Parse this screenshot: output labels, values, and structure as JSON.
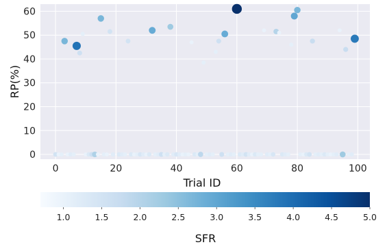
{
  "chart_data": {
    "type": "scatter",
    "xlabel": "Trial ID",
    "ylabel": "RP(%)",
    "xlim": [
      -5,
      104
    ],
    "ylim": [
      -2,
      63
    ],
    "x_ticks": [
      0,
      20,
      40,
      60,
      80,
      100
    ],
    "y_ticks": [
      0,
      10,
      20,
      30,
      40,
      50,
      60
    ],
    "grid": true,
    "colorbar": {
      "label": "SFR",
      "range": [
        0.7,
        5.0
      ],
      "ticks": [
        1.0,
        1.5,
        2.0,
        2.5,
        3.0,
        3.5,
        4.0,
        4.5,
        5.0
      ],
      "tick_labels": [
        "1.0",
        "1.5",
        "2.0",
        "2.5",
        "3.0",
        "3.5",
        "4.0",
        "4.5",
        "5.0"
      ],
      "colormap": "Blues",
      "orientation": "horizontal"
    },
    "colors": {
      "background": "#eaeaf2",
      "grid": "#ffffff"
    },
    "points": [
      {
        "x": 3,
        "y": 47.5,
        "sfr": 2.7
      },
      {
        "x": 7,
        "y": 45.5,
        "sfr": 3.9
      },
      {
        "x": 8,
        "y": 42.5,
        "sfr": 1.6
      },
      {
        "x": 9,
        "y": 50.5,
        "sfr": 1.1
      },
      {
        "x": 15,
        "y": 57,
        "sfr": 2.7
      },
      {
        "x": 18,
        "y": 51.5,
        "sfr": 1.5
      },
      {
        "x": 24,
        "y": 47.5,
        "sfr": 1.5
      },
      {
        "x": 32,
        "y": 52,
        "sfr": 2.9
      },
      {
        "x": 38,
        "y": 53.5,
        "sfr": 2.3
      },
      {
        "x": 45,
        "y": 47,
        "sfr": 1.0
      },
      {
        "x": 49,
        "y": 38.5,
        "sfr": 1.1
      },
      {
        "x": 53,
        "y": 43,
        "sfr": 1.1
      },
      {
        "x": 54,
        "y": 47.5,
        "sfr": 1.6
      },
      {
        "x": 56,
        "y": 50.5,
        "sfr": 2.9
      },
      {
        "x": 60,
        "y": 61,
        "sfr": 5.0
      },
      {
        "x": 69,
        "y": 52,
        "sfr": 1.0
      },
      {
        "x": 73,
        "y": 51.5,
        "sfr": 2.0
      },
      {
        "x": 74,
        "y": 51,
        "sfr": 1.0
      },
      {
        "x": 78,
        "y": 46,
        "sfr": 1.1
      },
      {
        "x": 79,
        "y": 58,
        "sfr": 3.0
      },
      {
        "x": 80,
        "y": 60.5,
        "sfr": 2.7
      },
      {
        "x": 85,
        "y": 47.5,
        "sfr": 1.7
      },
      {
        "x": 94,
        "y": 52,
        "sfr": 1.0
      },
      {
        "x": 96,
        "y": 44,
        "sfr": 1.7
      },
      {
        "x": 99,
        "y": 48.5,
        "sfr": 3.8
      },
      {
        "x": 0,
        "y": 0,
        "sfr": 1.5
      },
      {
        "x": 1,
        "y": 0,
        "sfr": 1.0
      },
      {
        "x": 2,
        "y": 0,
        "sfr": 1.1
      },
      {
        "x": 4,
        "y": 0,
        "sfr": 1.0
      },
      {
        "x": 5,
        "y": 0,
        "sfr": 1.2
      },
      {
        "x": 6,
        "y": 0,
        "sfr": 1.1
      },
      {
        "x": 10,
        "y": 0,
        "sfr": 1.0
      },
      {
        "x": 11,
        "y": 0,
        "sfr": 1.3
      },
      {
        "x": 12,
        "y": 0,
        "sfr": 1.6
      },
      {
        "x": 13,
        "y": 0,
        "sfr": 2.1
      },
      {
        "x": 14,
        "y": 0,
        "sfr": 1.0
      },
      {
        "x": 16,
        "y": 0,
        "sfr": 1.1
      },
      {
        "x": 17,
        "y": 0,
        "sfr": 1.0
      },
      {
        "x": 19,
        "y": 0,
        "sfr": 1.2
      },
      {
        "x": 21,
        "y": 0,
        "sfr": 1.3
      },
      {
        "x": 22,
        "y": 0,
        "sfr": 1.2
      },
      {
        "x": 23,
        "y": 0,
        "sfr": 1.1
      },
      {
        "x": 25,
        "y": 0,
        "sfr": 1.3
      },
      {
        "x": 26,
        "y": 0,
        "sfr": 1.0
      },
      {
        "x": 27,
        "y": 0,
        "sfr": 1.1
      },
      {
        "x": 28,
        "y": 0,
        "sfr": 1.4
      },
      {
        "x": 29,
        "y": 0,
        "sfr": 1.2
      },
      {
        "x": 30,
        "y": 0,
        "sfr": 1.0
      },
      {
        "x": 31,
        "y": 0,
        "sfr": 1.3
      },
      {
        "x": 33,
        "y": 0,
        "sfr": 1.1
      },
      {
        "x": 34,
        "y": 0,
        "sfr": 1.2
      },
      {
        "x": 35,
        "y": 0,
        "sfr": 1.6
      },
      {
        "x": 36,
        "y": 0,
        "sfr": 1.1
      },
      {
        "x": 37,
        "y": 0,
        "sfr": 1.3
      },
      {
        "x": 39,
        "y": 0,
        "sfr": 1.2
      },
      {
        "x": 40,
        "y": 0,
        "sfr": 1.4
      },
      {
        "x": 41,
        "y": 0,
        "sfr": 1.2
      },
      {
        "x": 42,
        "y": 0,
        "sfr": 1.0
      },
      {
        "x": 43,
        "y": 0,
        "sfr": 1.1
      },
      {
        "x": 44,
        "y": 0,
        "sfr": 1.0
      },
      {
        "x": 46,
        "y": 0,
        "sfr": 1.3
      },
      {
        "x": 47,
        "y": 0,
        "sfr": 1.1
      },
      {
        "x": 48,
        "y": 0,
        "sfr": 1.9
      },
      {
        "x": 50,
        "y": 0,
        "sfr": 1.1
      },
      {
        "x": 51,
        "y": 0,
        "sfr": 1.2
      },
      {
        "x": 52,
        "y": 0,
        "sfr": 1.1
      },
      {
        "x": 55,
        "y": 0,
        "sfr": 1.6
      },
      {
        "x": 57,
        "y": 0,
        "sfr": 1.1
      },
      {
        "x": 58,
        "y": 0,
        "sfr": 1.2
      },
      {
        "x": 59,
        "y": 0,
        "sfr": 1.1
      },
      {
        "x": 61,
        "y": 0,
        "sfr": 1.3
      },
      {
        "x": 62,
        "y": 0,
        "sfr": 1.2
      },
      {
        "x": 63,
        "y": 0,
        "sfr": 1.5
      },
      {
        "x": 64,
        "y": 0,
        "sfr": 1.2
      },
      {
        "x": 65,
        "y": 0,
        "sfr": 1.0
      },
      {
        "x": 66,
        "y": 0,
        "sfr": 1.3
      },
      {
        "x": 67,
        "y": 0,
        "sfr": 1.1
      },
      {
        "x": 68,
        "y": 0,
        "sfr": 1.1
      },
      {
        "x": 70,
        "y": 0,
        "sfr": 1.2
      },
      {
        "x": 71,
        "y": 0,
        "sfr": 1.1
      },
      {
        "x": 72,
        "y": 0,
        "sfr": 1.4
      },
      {
        "x": 75,
        "y": 0,
        "sfr": 1.3
      },
      {
        "x": 76,
        "y": 0,
        "sfr": 1.2
      },
      {
        "x": 77,
        "y": 0,
        "sfr": 1.1
      },
      {
        "x": 81,
        "y": 0,
        "sfr": 1.1
      },
      {
        "x": 82,
        "y": 0,
        "sfr": 1.0
      },
      {
        "x": 83,
        "y": 0,
        "sfr": 1.3
      },
      {
        "x": 84,
        "y": 0,
        "sfr": 1.5
      },
      {
        "x": 86,
        "y": 0,
        "sfr": 1.1
      },
      {
        "x": 87,
        "y": 0,
        "sfr": 1.2
      },
      {
        "x": 88,
        "y": 0,
        "sfr": 1.1
      },
      {
        "x": 89,
        "y": 0,
        "sfr": 1.3
      },
      {
        "x": 90,
        "y": 0,
        "sfr": 1.1
      },
      {
        "x": 91,
        "y": 0,
        "sfr": 1.0
      },
      {
        "x": 92,
        "y": 0,
        "sfr": 1.1
      },
      {
        "x": 93,
        "y": 0,
        "sfr": 1.2
      },
      {
        "x": 95,
        "y": 0,
        "sfr": 2.3
      },
      {
        "x": 97,
        "y": 0,
        "sfr": 1.1
      },
      {
        "x": 98,
        "y": 0,
        "sfr": 1.2
      }
    ]
  }
}
